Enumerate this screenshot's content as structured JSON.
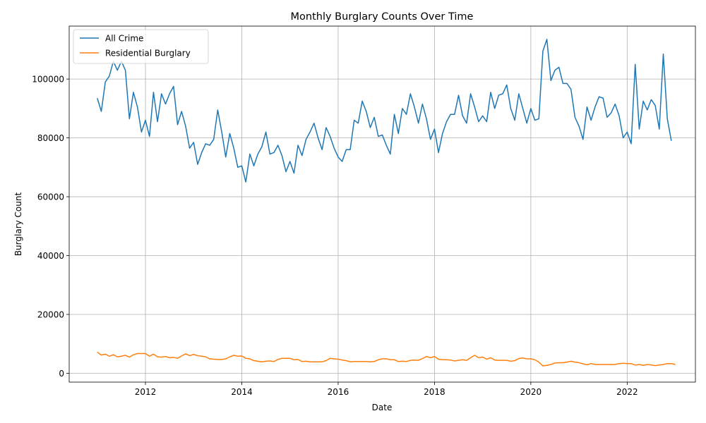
{
  "chart_data": {
    "type": "line",
    "title": "Monthly Burglary Counts Over Time",
    "xlabel": "Date",
    "ylabel": "Burglary Count",
    "xlim": [
      "2010-06",
      "2023-06"
    ],
    "ylim": [
      -3000,
      118000
    ],
    "xticks": [
      "2012",
      "2014",
      "2016",
      "2018",
      "2020",
      "2022"
    ],
    "yticks": [
      0,
      20000,
      40000,
      60000,
      80000,
      100000
    ],
    "grid": true,
    "legend_position": "top-left",
    "colors": {
      "all_crime": "#1f77b4",
      "residential": "#ff7f0e"
    },
    "start_month": "2011-01",
    "series": [
      {
        "name": "All Crime",
        "color": "#1f77b4",
        "values": [
          93500,
          89000,
          99000,
          101000,
          106000,
          103000,
          106000,
          103000,
          86500,
          95500,
          90500,
          82000,
          86000,
          80500,
          95500,
          85500,
          95000,
          91500,
          95000,
          97500,
          84500,
          89000,
          84000,
          76500,
          78500,
          71000,
          75000,
          78000,
          77500,
          79500,
          89500,
          82000,
          73500,
          81500,
          76500,
          70000,
          70500,
          65000,
          74500,
          70500,
          74500,
          77000,
          82000,
          74500,
          75000,
          77500,
          74000,
          68500,
          72000,
          68000,
          77500,
          74000,
          79500,
          82000,
          85000,
          80000,
          76000,
          83500,
          80500,
          76500,
          73500,
          72000,
          76000,
          76000,
          86000,
          85000,
          92500,
          89000,
          83500,
          87000,
          80500,
          81000,
          77500,
          74500,
          88000,
          81500,
          90000,
          88000,
          95000,
          90500,
          85000,
          91500,
          86500,
          79500,
          83000,
          75000,
          81500,
          85500,
          88000,
          88000,
          94500,
          87500,
          85000,
          95000,
          90500,
          85500,
          87500,
          85500,
          95500,
          90000,
          94500,
          95000,
          98000,
          90000,
          86000,
          95000,
          90000,
          85000,
          90000,
          86000,
          86500,
          109500,
          113500,
          99500,
          103000,
          104000,
          98500,
          98500,
          96500,
          87000,
          84000,
          79500,
          90500,
          86000,
          90500,
          94000,
          93500,
          87000,
          88500,
          91500,
          87500,
          80000,
          82000,
          78000,
          105000,
          83000,
          92500,
          89500,
          93000,
          91000,
          83000,
          108500,
          86500,
          79000
        ]
      },
      {
        "name": "Residential Burglary",
        "color": "#ff7f0e",
        "values": [
          7200,
          6200,
          6500,
          5800,
          6300,
          5600,
          5800,
          6100,
          5500,
          6300,
          6700,
          6700,
          6700,
          5800,
          6500,
          5600,
          5500,
          5700,
          5300,
          5400,
          5100,
          5900,
          6600,
          6000,
          6400,
          6000,
          5800,
          5600,
          4900,
          4800,
          4700,
          4700,
          4900,
          5600,
          6100,
          5800,
          5900,
          5100,
          4900,
          4300,
          4100,
          3900,
          4100,
          4200,
          4000,
          4700,
          5100,
          5100,
          5100,
          4600,
          4700,
          4000,
          4100,
          3900,
          3900,
          3900,
          3900,
          4300,
          5100,
          4900,
          4800,
          4500,
          4300,
          3900,
          4000,
          4000,
          4000,
          4000,
          3900,
          4000,
          4600,
          4900,
          4900,
          4600,
          4600,
          4000,
          4100,
          4000,
          4400,
          4500,
          4400,
          5000,
          5700,
          5300,
          5700,
          4800,
          4600,
          4600,
          4500,
          4200,
          4400,
          4600,
          4400,
          5300,
          6100,
          5300,
          5500,
          4800,
          5300,
          4500,
          4400,
          4400,
          4400,
          4100,
          4300,
          5000,
          5200,
          4900,
          4900,
          4600,
          3800,
          2500,
          2700,
          3000,
          3500,
          3600,
          3600,
          3800,
          4100,
          3800,
          3600,
          3200,
          2900,
          3300,
          3000,
          3000,
          3000,
          3000,
          3000,
          3000,
          3300,
          3400,
          3300,
          3300,
          2800,
          3000,
          2700,
          3000,
          2800,
          2600,
          2800,
          3000,
          3300,
          3300,
          3000
        ]
      }
    ]
  }
}
